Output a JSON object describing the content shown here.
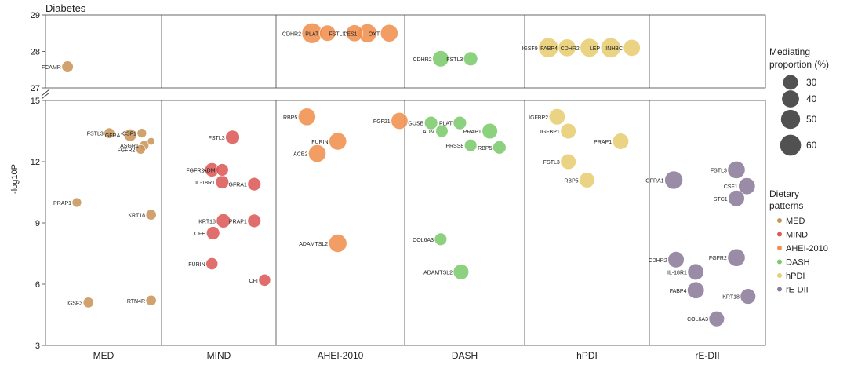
{
  "chart_data": {
    "type": "scatter",
    "title": "Diabetes",
    "ylabel": "-log10P",
    "panels": [
      "MED",
      "MIND",
      "AHEI-2010",
      "DASH",
      "hPDI",
      "rE-DII"
    ],
    "axis_break": true,
    "lower_axis": {
      "ylim": [
        3,
        15
      ],
      "ticks": [
        "3",
        "6",
        "9",
        "12",
        "15"
      ]
    },
    "upper_axis": {
      "ylim": [
        27,
        29
      ],
      "ticks": [
        "27",
        "28",
        "29"
      ]
    },
    "size_legend": {
      "title": "Mediating proportion (%)",
      "values": [
        30,
        40,
        50,
        60
      ]
    },
    "color_legend": {
      "title": "Dietary patterns",
      "items": [
        {
          "name": "MED",
          "color": "#C9955A"
        },
        {
          "name": "MIND",
          "color": "#DC5A58"
        },
        {
          "name": "AHEI-2010",
          "color": "#F08F4E"
        },
        {
          "name": "DASH",
          "color": "#7CCB6B"
        },
        {
          "name": "hPDI",
          "color": "#E8CD73"
        },
        {
          "name": "rE-DII",
          "color": "#8C7B9B"
        }
      ]
    },
    "points": [
      {
        "label": "FCAMR",
        "panel": "MED",
        "x": 0.19,
        "y": 27.58,
        "size": 12
      },
      {
        "label": "FSTL3",
        "panel": "MED",
        "x": 0.55,
        "y": 13.4,
        "size": 10
      },
      {
        "label": "GFRA1",
        "panel": "MED",
        "x": 0.73,
        "y": 13.3,
        "size": 14
      },
      {
        "label": "CSF1",
        "panel": "MED",
        "x": 0.83,
        "y": 13.4,
        "size": 8
      },
      {
        "label": "",
        "panel": "MED",
        "x": 0.91,
        "y": 13.0,
        "size": 5
      },
      {
        "label": "ASGR1",
        "panel": "MED",
        "x": 0.85,
        "y": 12.8,
        "size": 8
      },
      {
        "label": "FGFR2",
        "panel": "MED",
        "x": 0.82,
        "y": 12.6,
        "size": 8
      },
      {
        "label": "PRAP1",
        "panel": "MED",
        "x": 0.27,
        "y": 10.0,
        "size": 8
      },
      {
        "label": "KRT18",
        "panel": "MED",
        "x": 0.91,
        "y": 9.4,
        "size": 10
      },
      {
        "label": "IGSF3",
        "panel": "MED",
        "x": 0.37,
        "y": 5.1,
        "size": 10
      },
      {
        "label": "RTN4R",
        "panel": "MED",
        "x": 0.91,
        "y": 5.2,
        "size": 10
      },
      {
        "label": "FSTL3",
        "panel": "MIND",
        "x": 0.62,
        "y": 13.2,
        "size": 18
      },
      {
        "label": "FGFR2",
        "panel": "MIND",
        "x": 0.44,
        "y": 11.6,
        "size": 18
      },
      {
        "label": "ADM",
        "panel": "MIND",
        "x": 0.53,
        "y": 11.6,
        "size": 14
      },
      {
        "label": "IL-18R1",
        "panel": "MIND",
        "x": 0.53,
        "y": 11.0,
        "size": 16
      },
      {
        "label": "GFRA1",
        "panel": "MIND",
        "x": 0.81,
        "y": 10.9,
        "size": 16
      },
      {
        "label": "KRT18",
        "panel": "MIND",
        "x": 0.54,
        "y": 9.1,
        "size": 18
      },
      {
        "label": "PRAP1",
        "panel": "MIND",
        "x": 0.81,
        "y": 9.1,
        "size": 16
      },
      {
        "label": "CFH",
        "panel": "MIND",
        "x": 0.45,
        "y": 8.5,
        "size": 16
      },
      {
        "label": "FURIN",
        "panel": "MIND",
        "x": 0.44,
        "y": 7.0,
        "size": 13
      },
      {
        "label": "CFI",
        "panel": "MIND",
        "x": 0.9,
        "y": 6.2,
        "size": 13
      },
      {
        "label": "CDHR2",
        "panel": "AHEI-2010",
        "x": 0.28,
        "y": 28.5,
        "size": 38
      },
      {
        "label": "PLAT",
        "panel": "AHEI-2010",
        "x": 0.4,
        "y": 28.5,
        "size": 24
      },
      {
        "label": "FSTL3",
        "panel": "AHEI-2010",
        "x": 0.61,
        "y": 28.5,
        "size": 26
      },
      {
        "label": "CES1",
        "panel": "AHEI-2010",
        "x": 0.71,
        "y": 28.5,
        "size": 32
      },
      {
        "label": "OXT",
        "panel": "AHEI-2010",
        "x": 0.88,
        "y": 28.5,
        "size": 28
      },
      {
        "label": "RBP5",
        "panel": "AHEI-2010",
        "x": 0.24,
        "y": 14.2,
        "size": 28
      },
      {
        "label": "FGF21",
        "panel": "AHEI-2010",
        "x": 0.96,
        "y": 14.0,
        "size": 26
      },
      {
        "label": "FURIN",
        "panel": "AHEI-2010",
        "x": 0.48,
        "y": 13.0,
        "size": 28
      },
      {
        "label": "ACE2",
        "panel": "AHEI-2010",
        "x": 0.32,
        "y": 12.4,
        "size": 28
      },
      {
        "label": "ADAMTSL2",
        "panel": "AHEI-2010",
        "x": 0.48,
        "y": 8.0,
        "size": 30
      },
      {
        "label": "CDHR2",
        "panel": "DASH",
        "x": 0.3,
        "y": 27.8,
        "size": 24
      },
      {
        "label": "FSTL3",
        "panel": "DASH",
        "x": 0.55,
        "y": 27.8,
        "size": 18
      },
      {
        "label": "GUSB",
        "panel": "DASH",
        "x": 0.22,
        "y": 13.9,
        "size": 16
      },
      {
        "label": "PLAT",
        "panel": "DASH",
        "x": 0.46,
        "y": 13.9,
        "size": 16
      },
      {
        "label": "ADM",
        "panel": "DASH",
        "x": 0.31,
        "y": 13.5,
        "size": 14
      },
      {
        "label": "PRAP1",
        "panel": "DASH",
        "x": 0.71,
        "y": 13.5,
        "size": 22
      },
      {
        "label": "PRSS8",
        "panel": "DASH",
        "x": 0.55,
        "y": 12.8,
        "size": 14
      },
      {
        "label": "RBP5",
        "panel": "DASH",
        "x": 0.79,
        "y": 12.7,
        "size": 16
      },
      {
        "label": "COL6A3",
        "panel": "DASH",
        "x": 0.3,
        "y": 8.2,
        "size": 14
      },
      {
        "label": "ADAMTSL2",
        "panel": "DASH",
        "x": 0.47,
        "y": 6.6,
        "size": 22
      },
      {
        "label": "IGSF9",
        "panel": "hPDI",
        "x": 0.19,
        "y": 28.1,
        "size": 36
      },
      {
        "label": "FABP4",
        "panel": "hPDI",
        "x": 0.34,
        "y": 28.1,
        "size": 28
      },
      {
        "label": "CDHR2",
        "panel": "hPDI",
        "x": 0.52,
        "y": 28.1,
        "size": 32
      },
      {
        "label": "LEP",
        "panel": "hPDI",
        "x": 0.69,
        "y": 28.1,
        "size": 36
      },
      {
        "label": "INHBC",
        "panel": "hPDI",
        "x": 0.86,
        "y": 28.1,
        "size": 26
      },
      {
        "label": "IGFBP2",
        "panel": "hPDI",
        "x": 0.26,
        "y": 14.2,
        "size": 24
      },
      {
        "label": "IGFBP1",
        "panel": "hPDI",
        "x": 0.35,
        "y": 13.5,
        "size": 22
      },
      {
        "label": "PRAP1",
        "panel": "hPDI",
        "x": 0.77,
        "y": 13.0,
        "size": 24
      },
      {
        "label": "FSTL3",
        "panel": "hPDI",
        "x": 0.35,
        "y": 12.0,
        "size": 22
      },
      {
        "label": "RBP5",
        "panel": "hPDI",
        "x": 0.5,
        "y": 11.1,
        "size": 22
      },
      {
        "label": "GFRA1",
        "panel": "rE-DII",
        "x": 0.21,
        "y": 11.1,
        "size": 30
      },
      {
        "label": "FSTL3",
        "panel": "rE-DII",
        "x": 0.75,
        "y": 11.6,
        "size": 28
      },
      {
        "label": "CSF1",
        "panel": "rE-DII",
        "x": 0.84,
        "y": 10.8,
        "size": 26
      },
      {
        "label": "STC1",
        "panel": "rE-DII",
        "x": 0.75,
        "y": 10.2,
        "size": 24
      },
      {
        "label": "CDHR2",
        "panel": "rE-DII",
        "x": 0.23,
        "y": 7.2,
        "size": 24
      },
      {
        "label": "FGFR2",
        "panel": "rE-DII",
        "x": 0.75,
        "y": 7.3,
        "size": 28
      },
      {
        "label": "IL-18R1",
        "panel": "rE-DII",
        "x": 0.4,
        "y": 6.6,
        "size": 24
      },
      {
        "label": "FABP4",
        "panel": "rE-DII",
        "x": 0.4,
        "y": 5.7,
        "size": 26
      },
      {
        "label": "KRT18",
        "panel": "rE-DII",
        "x": 0.85,
        "y": 5.4,
        "size": 22
      },
      {
        "label": "COL6A3",
        "panel": "rE-DII",
        "x": 0.58,
        "y": 4.3,
        "size": 22
      }
    ]
  }
}
